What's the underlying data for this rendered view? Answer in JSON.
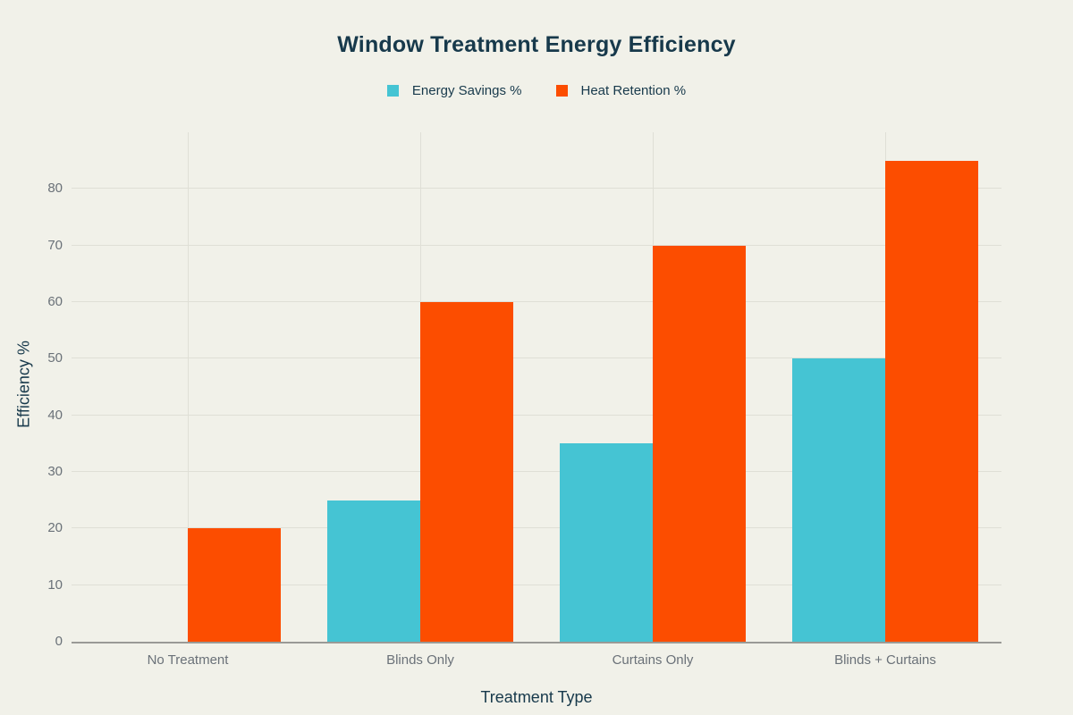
{
  "chart_data": {
    "type": "bar",
    "title": "Window Treatment Energy Efficiency",
    "categories": [
      "No Treatment",
      "Blinds Only",
      "Curtains Only",
      "Blinds + Curtains"
    ],
    "series": [
      {
        "name": "Energy Savings %",
        "color": "#45c4d3",
        "values": [
          0,
          25,
          35,
          50
        ]
      },
      {
        "name": "Heat Retention %",
        "color": "#fc4d00",
        "values": [
          20,
          60,
          70,
          85
        ]
      }
    ],
    "xlabel": "Treatment Type",
    "ylabel": "Efficiency %",
    "ylim": [
      0,
      90
    ],
    "yticks": [
      0,
      10,
      20,
      30,
      40,
      50,
      60,
      70,
      80
    ],
    "grid": true,
    "legend_position": "top-center"
  },
  "colors": {
    "background": "#f1f1e9",
    "heading_text": "#17394b",
    "tick_text": "#6a7178",
    "gridline": "#dfdfd6",
    "axis_line": "#9a9a96"
  }
}
